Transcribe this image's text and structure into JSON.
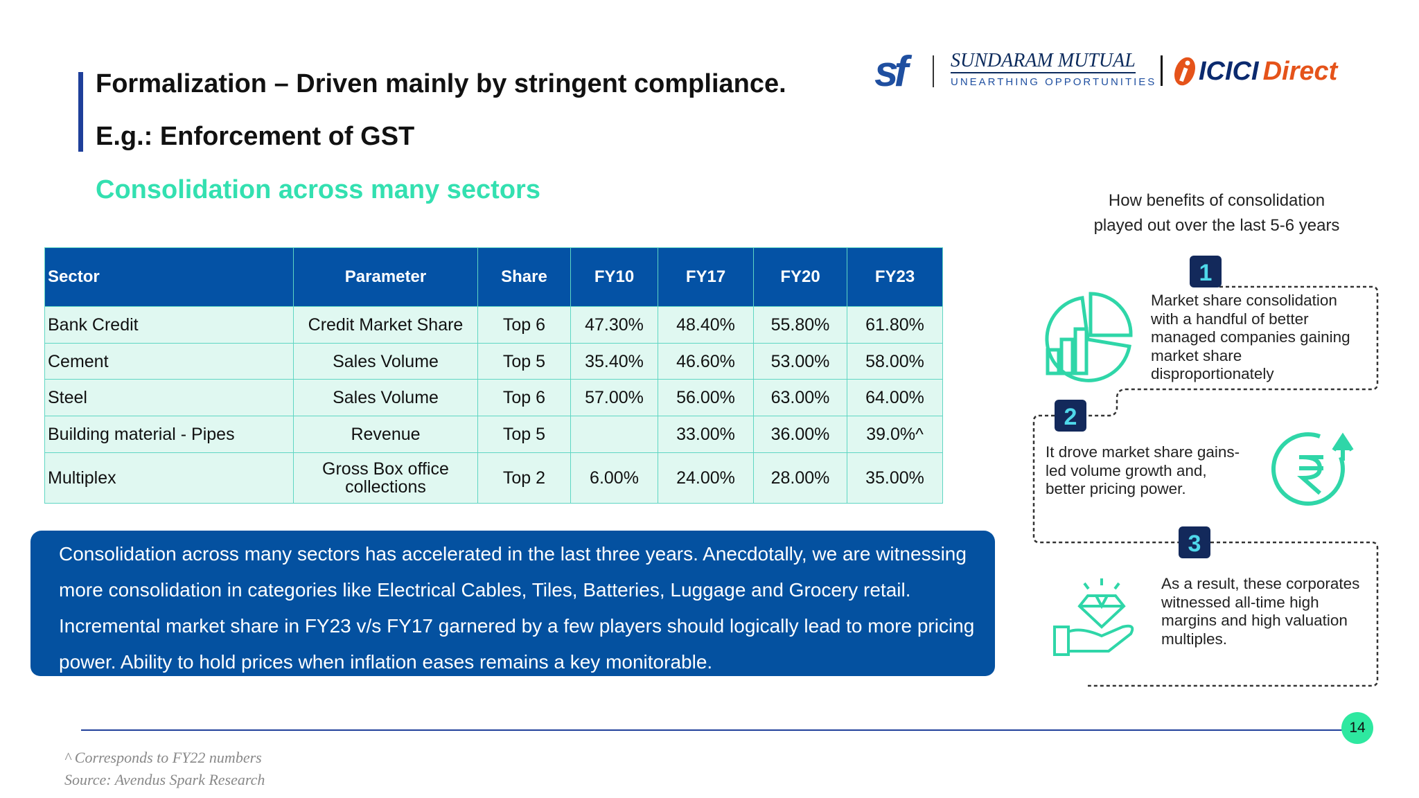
{
  "header": {
    "title": "Formalization – Driven mainly by stringent compliance.",
    "subtitle": "E.g.: Enforcement of GST",
    "section": "Consolidation across many sectors"
  },
  "logos": {
    "sf": "sf",
    "sundaram": "SUNDARAM MUTUAL",
    "tagline": "UNEARTHING OPPORTUNITIES",
    "icici": "ICICI",
    "direct": "Direct"
  },
  "table": {
    "columns": [
      "Sector",
      "Parameter",
      "Share",
      "FY10",
      "FY17",
      "FY20",
      "FY23"
    ],
    "rows": [
      [
        "Bank Credit",
        "Credit Market Share",
        "Top 6",
        "47.30%",
        "48.40%",
        "55.80%",
        "61.80%"
      ],
      [
        "Cement",
        "Sales Volume",
        "Top 5",
        "35.40%",
        "46.60%",
        "53.00%",
        "58.00%"
      ],
      [
        "Steel",
        "Sales Volume",
        "Top 6",
        "57.00%",
        "56.00%",
        "63.00%",
        "64.00%"
      ],
      [
        "Building material - Pipes",
        "Revenue",
        "Top 5",
        null,
        "33.00%",
        "36.00%",
        "39.0%^"
      ],
      [
        "Multiplex",
        "Gross Box office collections",
        "Top 2",
        "6.00%",
        "24.00%",
        "28.00%",
        "35.00%"
      ]
    ]
  },
  "callout": {
    "lines": [
      "Consolidation across many sectors has accelerated in the last three years. Anecdotally, we are witnessing",
      "more consolidation in categories like Electrical Cables, Tiles, Batteries, Luggage and Grocery retail.",
      "Incremental market share in FY23 v/s FY17 garnered by a few players should logically lead to more pricing",
      "power. Ability to hold prices when inflation eases remains a key monitorable."
    ]
  },
  "infographic": {
    "caption": [
      "How benefits of consolidation",
      "played out over the last 5-6 years"
    ],
    "steps": [
      {
        "number": "1",
        "lines": [
          "Market share consolidation",
          "with a handful of better",
          "managed companies gaining",
          "market share",
          "disproportionately"
        ]
      },
      {
        "number": "2",
        "lines": [
          "It drove market share gains-",
          "led volume growth and,",
          "better pricing power."
        ]
      },
      {
        "number": "3",
        "lines": [
          "As a result, these corporates",
          "witnessed all-time high",
          "margins and high valuation",
          "multiples."
        ]
      }
    ]
  },
  "footer": {
    "page": "14",
    "notes": [
      "^ Corresponds to FY22 numbers",
      "Source: Avendus Spark Research"
    ]
  }
}
